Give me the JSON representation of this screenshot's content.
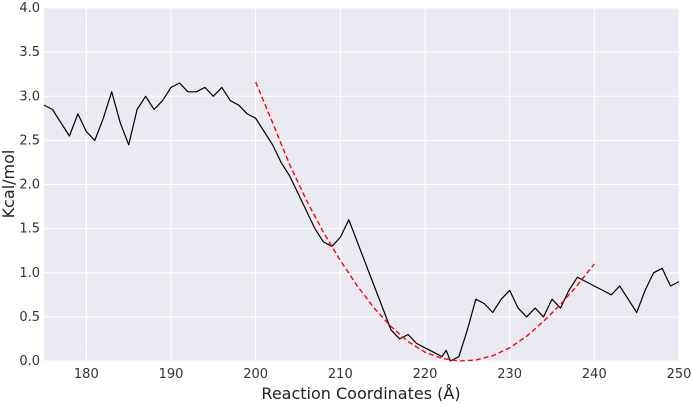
{
  "chart_data": {
    "type": "line",
    "title": "",
    "xlabel": "Reaction Coordinates (Å)",
    "ylabel": "Kcal/mol",
    "xlim": [
      175,
      250
    ],
    "ylim": [
      0,
      4.0
    ],
    "xticks": [
      180,
      190,
      200,
      210,
      220,
      230,
      240,
      250
    ],
    "yticks": [
      0.0,
      0.5,
      1.0,
      1.5,
      2.0,
      2.5,
      3.0,
      3.5,
      4.0
    ],
    "grid": true,
    "background": "#eaeaf2",
    "series": [
      {
        "color": "#000000",
        "style": "solid",
        "x": [
          175,
          176,
          177,
          178,
          179,
          180,
          181,
          182,
          183,
          184,
          185,
          186,
          187,
          188,
          189,
          190,
          191,
          192,
          193,
          194,
          195,
          196,
          197,
          198,
          199,
          200,
          201,
          202,
          203,
          204,
          205,
          206,
          207,
          208,
          209,
          210,
          211,
          212,
          213,
          214,
          215,
          216,
          217,
          218,
          219,
          220,
          221,
          222,
          222.5,
          223,
          224,
          225,
          226,
          227,
          228,
          229,
          230,
          231,
          232,
          233,
          234,
          235,
          236,
          237,
          238,
          239,
          240,
          241,
          242,
          243,
          244,
          245,
          246,
          247,
          248,
          249,
          250
        ],
        "y": [
          2.9,
          2.85,
          2.7,
          2.55,
          2.8,
          2.6,
          2.5,
          2.75,
          3.05,
          2.7,
          2.45,
          2.85,
          3.0,
          2.85,
          2.95,
          3.1,
          3.15,
          3.05,
          3.05,
          3.1,
          3.0,
          3.1,
          2.95,
          2.9,
          2.8,
          2.75,
          2.6,
          2.45,
          2.25,
          2.1,
          1.9,
          1.7,
          1.5,
          1.35,
          1.3,
          1.4,
          1.6,
          1.35,
          1.1,
          0.85,
          0.6,
          0.35,
          0.25,
          0.3,
          0.2,
          0.15,
          0.1,
          0.05,
          0.12,
          0.0,
          0.05,
          0.35,
          0.7,
          0.65,
          0.55,
          0.7,
          0.8,
          0.6,
          0.5,
          0.6,
          0.5,
          0.7,
          0.6,
          0.8,
          0.95,
          0.9,
          0.85,
          0.8,
          0.75,
          0.85,
          0.7,
          0.55,
          0.8,
          1.0,
          1.05,
          0.85,
          0.9
        ]
      },
      {
        "color": "#ff0000",
        "style": "dashed",
        "x": [
          200,
          202,
          204,
          206,
          208,
          210,
          212,
          214,
          216,
          218,
          220,
          222,
          224,
          226,
          228,
          230,
          232,
          234,
          236,
          238,
          240
        ],
        "y": [
          3.16,
          2.7,
          2.23,
          1.82,
          1.46,
          1.14,
          0.85,
          0.6,
          0.39,
          0.22,
          0.1,
          0.03,
          0.0,
          0.01,
          0.06,
          0.15,
          0.28,
          0.45,
          0.64,
          0.86,
          1.1
        ]
      }
    ]
  }
}
